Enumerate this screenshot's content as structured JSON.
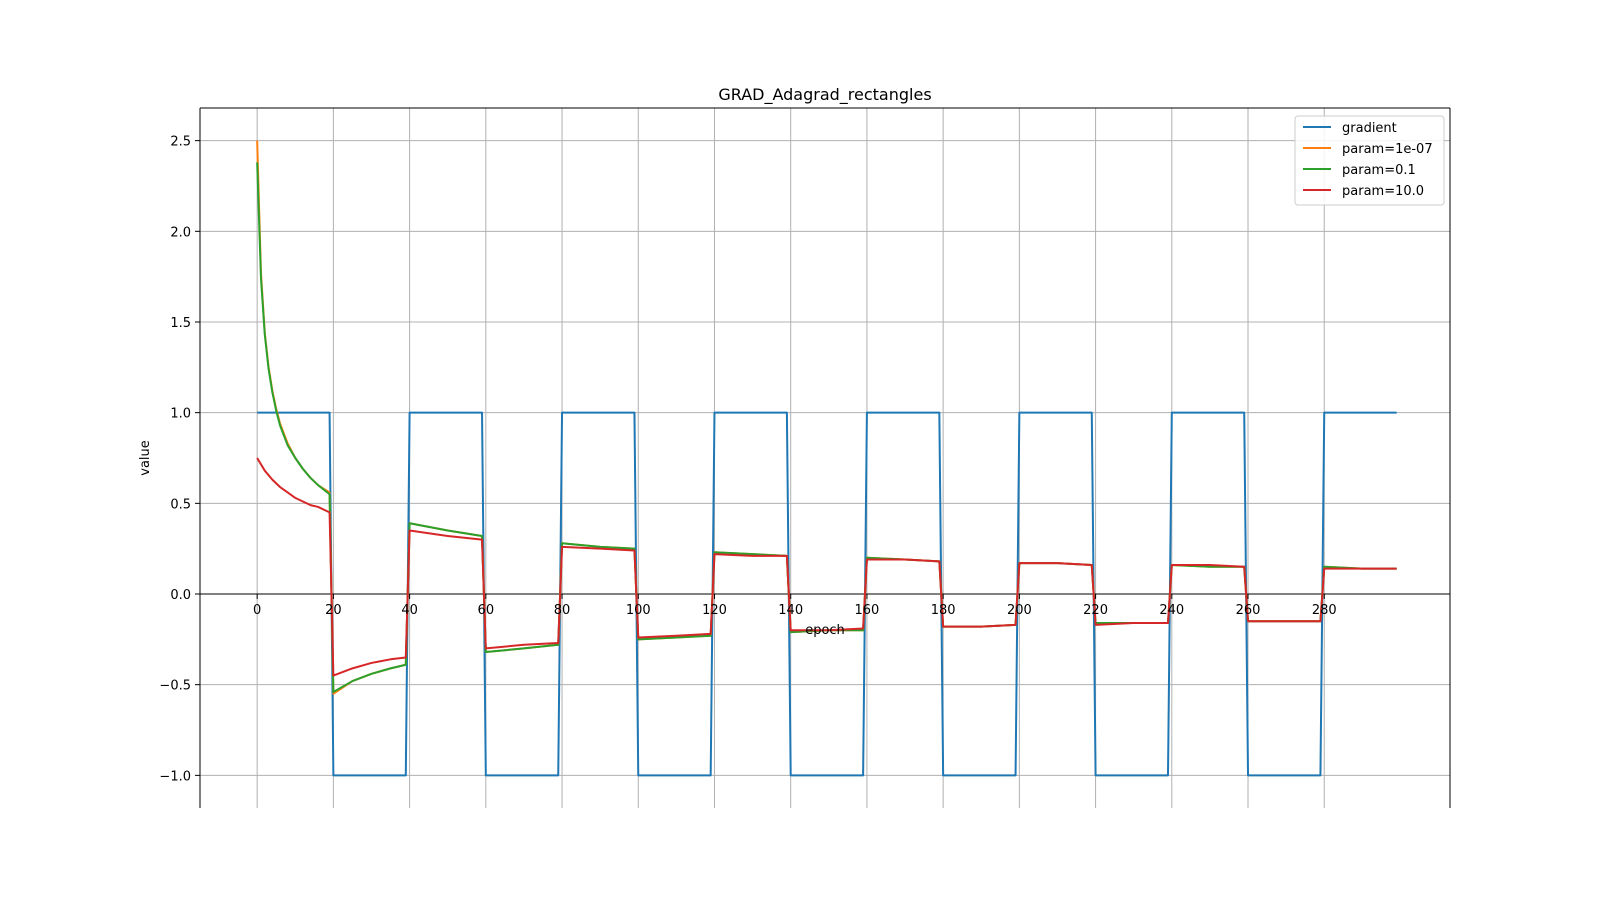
{
  "chart_data": {
    "type": "line",
    "title": "GRAD_Adagrad_rectangles",
    "xlabel": "epoch",
    "ylabel": "value",
    "xlim": [
      -15,
      313
    ],
    "ylim": [
      -1.18,
      2.68
    ],
    "xticks": [
      0,
      20,
      40,
      60,
      80,
      100,
      120,
      140,
      160,
      180,
      200,
      220,
      240,
      260,
      280
    ],
    "xtick_labels": [
      "0",
      "20",
      "40",
      "60",
      "80",
      "100",
      "120",
      "140",
      "160",
      "180",
      "200",
      "220",
      "240",
      "260",
      "280"
    ],
    "yticks": [
      -1.0,
      -0.5,
      0.0,
      0.5,
      1.0,
      1.5,
      2.0,
      2.5
    ],
    "ytick_labels": [
      "−1.0",
      "−0.5",
      "0.0",
      "0.5",
      "1.0",
      "1.5",
      "2.0",
      "2.5"
    ],
    "grid": true,
    "zero_line": true,
    "legend_position": "top-right",
    "series": [
      {
        "name": "gradient",
        "color": "#1f77b4",
        "x": [
          0,
          19,
          20,
          39,
          40,
          59,
          60,
          79,
          80,
          99,
          100,
          119,
          120,
          139,
          140,
          159,
          160,
          179,
          180,
          199,
          200,
          219,
          220,
          239,
          240,
          259,
          260,
          279,
          280,
          299
        ],
        "values": [
          1,
          1,
          -1,
          -1,
          1,
          1,
          -1,
          -1,
          1,
          1,
          -1,
          -1,
          1,
          1,
          -1,
          -1,
          1,
          1,
          -1,
          -1,
          1,
          1,
          -1,
          -1,
          1,
          1,
          -1,
          -1,
          1,
          1
        ]
      },
      {
        "name": "param=1e-07",
        "color": "#ff7f0e",
        "x": [
          0,
          1,
          2,
          3,
          4,
          5,
          6,
          8,
          10,
          12,
          14,
          16,
          19,
          20,
          25,
          30,
          35,
          39,
          40,
          50,
          59,
          60,
          70,
          79,
          80,
          90,
          99,
          100,
          110,
          119,
          120,
          130,
          139,
          140,
          150,
          159,
          160,
          170,
          179,
          180,
          190,
          199,
          200,
          210,
          219,
          220,
          230,
          239,
          240,
          250,
          259,
          260,
          270,
          279,
          280,
          290,
          299
        ],
        "values": [
          2.5,
          1.77,
          1.44,
          1.25,
          1.12,
          1.02,
          0.94,
          0.83,
          0.75,
          0.69,
          0.64,
          0.6,
          0.56,
          -0.55,
          -0.48,
          -0.44,
          -0.41,
          -0.39,
          0.39,
          0.35,
          0.32,
          -0.32,
          -0.3,
          -0.28,
          0.28,
          0.26,
          0.25,
          -0.25,
          -0.24,
          -0.23,
          0.23,
          0.22,
          0.21,
          -0.21,
          -0.2,
          -0.2,
          0.2,
          0.19,
          0.18,
          -0.18,
          -0.18,
          -0.17,
          0.17,
          0.17,
          0.16,
          -0.16,
          -0.16,
          -0.16,
          0.16,
          0.15,
          0.15,
          -0.15,
          -0.15,
          -0.15,
          0.15,
          0.14,
          0.14
        ]
      },
      {
        "name": "param=0.1",
        "color": "#2ca02c",
        "x": [
          0,
          1,
          2,
          3,
          4,
          5,
          6,
          8,
          10,
          12,
          14,
          16,
          19,
          20,
          25,
          30,
          35,
          39,
          40,
          50,
          59,
          60,
          70,
          79,
          80,
          90,
          99,
          100,
          110,
          119,
          120,
          130,
          139,
          140,
          150,
          159,
          160,
          170,
          179,
          180,
          190,
          199,
          200,
          210,
          219,
          220,
          230,
          239,
          240,
          250,
          259,
          260,
          270,
          279,
          280,
          290,
          299
        ],
        "values": [
          2.38,
          1.74,
          1.43,
          1.24,
          1.11,
          1.01,
          0.93,
          0.82,
          0.75,
          0.69,
          0.64,
          0.6,
          0.55,
          -0.54,
          -0.48,
          -0.44,
          -0.41,
          -0.39,
          0.39,
          0.35,
          0.32,
          -0.32,
          -0.3,
          -0.28,
          0.28,
          0.26,
          0.25,
          -0.25,
          -0.24,
          -0.23,
          0.23,
          0.22,
          0.21,
          -0.21,
          -0.2,
          -0.2,
          0.2,
          0.19,
          0.18,
          -0.18,
          -0.18,
          -0.17,
          0.17,
          0.17,
          0.16,
          -0.16,
          -0.16,
          -0.16,
          0.16,
          0.15,
          0.15,
          -0.15,
          -0.15,
          -0.15,
          0.15,
          0.14,
          0.14
        ]
      },
      {
        "name": "param=10.0",
        "color": "#d62728",
        "x": [
          0,
          2,
          4,
          6,
          8,
          10,
          12,
          14,
          16,
          19,
          20,
          25,
          30,
          35,
          39,
          40,
          50,
          59,
          60,
          70,
          79,
          80,
          90,
          99,
          100,
          110,
          119,
          120,
          130,
          139,
          140,
          150,
          159,
          160,
          170,
          179,
          180,
          190,
          199,
          200,
          210,
          219,
          220,
          230,
          239,
          240,
          250,
          259,
          260,
          270,
          279,
          280,
          290,
          299
        ],
        "values": [
          0.75,
          0.68,
          0.63,
          0.59,
          0.56,
          0.53,
          0.51,
          0.49,
          0.48,
          0.45,
          -0.45,
          -0.41,
          -0.38,
          -0.36,
          -0.35,
          0.35,
          0.32,
          0.3,
          -0.3,
          -0.28,
          -0.27,
          0.26,
          0.25,
          0.24,
          -0.24,
          -0.23,
          -0.22,
          0.22,
          0.21,
          0.21,
          -0.2,
          -0.2,
          -0.19,
          0.19,
          0.19,
          0.18,
          -0.18,
          -0.18,
          -0.17,
          0.17,
          0.17,
          0.16,
          -0.17,
          -0.16,
          -0.16,
          0.16,
          0.16,
          0.15,
          -0.15,
          -0.15,
          -0.15,
          0.14,
          0.14,
          0.14
        ]
      }
    ]
  }
}
